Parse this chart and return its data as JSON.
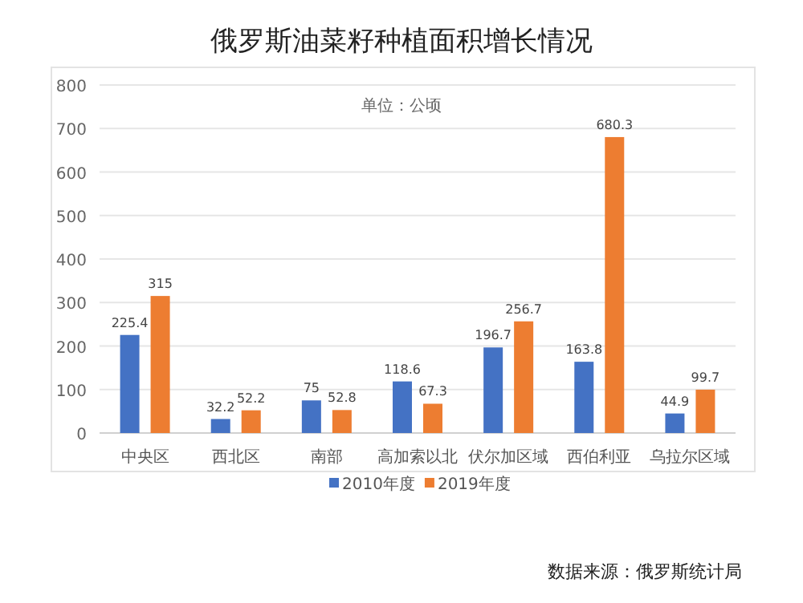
{
  "chart_data": {
    "type": "bar",
    "title": "俄罗斯油菜籽种植面积增长情况",
    "subtitle": "单位：公顷",
    "categories": [
      "中央区",
      "西北区",
      "南部",
      "高加索以北",
      "伏尔加区域",
      "西伯利亚",
      "乌拉尔区域"
    ],
    "series": [
      {
        "name": "2010年度",
        "color": "#4472c4",
        "values": [
          225.4,
          32.2,
          75,
          118.6,
          196.7,
          163.8,
          44.9
        ]
      },
      {
        "name": "2019年度",
        "color": "#ed7d31",
        "values": [
          315,
          52.2,
          52.8,
          67.3,
          256.7,
          680.3,
          99.7
        ]
      }
    ],
    "ylim": [
      0,
      800
    ],
    "yticks": [
      0,
      100,
      200,
      300,
      400,
      500,
      600,
      700,
      800
    ],
    "grid": "y",
    "legend": "bottom",
    "data_labels": true,
    "annotations": [
      "数据来源：俄罗斯统计局"
    ]
  }
}
